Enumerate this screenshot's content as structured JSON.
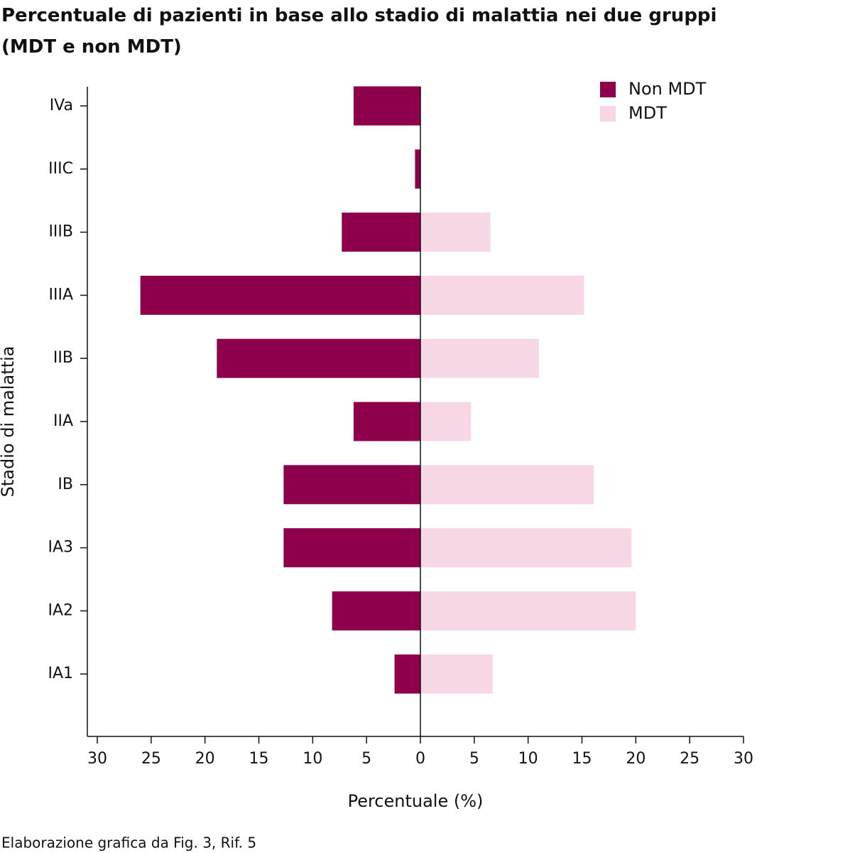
{
  "chart_data": {
    "type": "diverging-bar",
    "title": "Percentuale di pazienti in base allo stadio di malattia nei due gruppi (MDT e non MDT)",
    "x_label": "Percentuale (%)",
    "y_label": "Stadio di malattia",
    "source": "Elaborazione grafica da Fig. 3, Rif. 5",
    "categories": [
      "IVa",
      "IIIC",
      "IIIB",
      "IIIA",
      "IIB",
      "IIA",
      "IB",
      "IA3",
      "IA2",
      "IA1"
    ],
    "series": [
      {
        "name": "Non MDT",
        "color": "#8e004b",
        "values": [
          -6.2,
          -0.5,
          -7.3,
          -26.0,
          -18.9,
          -6.2,
          -12.7,
          -12.7,
          -8.2,
          -2.4
        ]
      },
      {
        "name": "MDT",
        "color": "#f7d6e6",
        "values": [
          0,
          0,
          6.5,
          15.2,
          11.0,
          4.7,
          16.1,
          19.6,
          20.0,
          6.7
        ]
      }
    ],
    "xlim": [
      -30,
      30
    ],
    "xticks": [
      {
        "value": -30,
        "label": "30"
      },
      {
        "value": -25,
        "label": "25"
      },
      {
        "value": -20,
        "label": "20"
      },
      {
        "value": -15,
        "label": "15"
      },
      {
        "value": -10,
        "label": "10"
      },
      {
        "value": -5,
        "label": "5"
      },
      0,
      5,
      10,
      15,
      20,
      25,
      30
    ],
    "legend": "top-right"
  }
}
